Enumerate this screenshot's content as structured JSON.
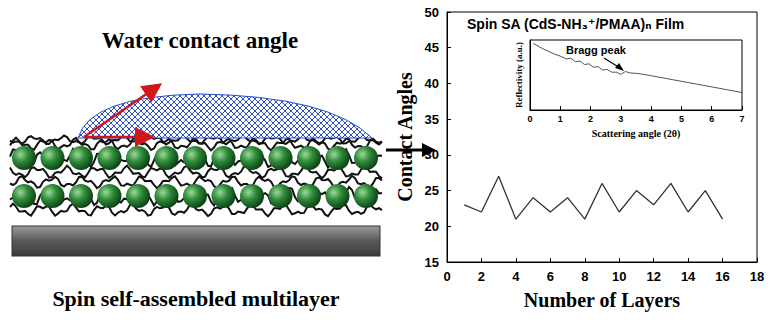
{
  "diagram": {
    "title": "Water contact angle",
    "caption": "Spin self-assembled multilayer"
  },
  "chart_data": [
    {
      "type": "line",
      "title": "Spin SA (CdS-NH₃⁺/PMAA)ₙ Film",
      "xlabel": "Number of Layers",
      "ylabel": "Contact Angles",
      "x": [
        1,
        2,
        3,
        4,
        5,
        6,
        7,
        8,
        9,
        10,
        11,
        12,
        13,
        14,
        15,
        16
      ],
      "values": [
        23,
        22,
        27,
        21,
        24,
        22,
        24,
        21,
        26,
        22,
        25,
        23,
        26,
        22,
        25,
        21
      ],
      "color": "#333333",
      "marker": "none",
      "xlim": [
        0,
        18
      ],
      "xticks": [
        0,
        2,
        4,
        6,
        8,
        10,
        12,
        14,
        16,
        18
      ],
      "ylim": [
        15,
        50
      ],
      "yticks": [
        15,
        20,
        25,
        30,
        35,
        40,
        45,
        50
      ],
      "grid": false
    },
    {
      "type": "line",
      "xlabel": "Scattering angle (2θ)",
      "ylabel": "Reflectivity (a.u.)",
      "annotation": "Bragg peak",
      "x": [
        0.1,
        0.2,
        0.4,
        0.6,
        0.8,
        1.0,
        1.2,
        1.35,
        1.5,
        1.65,
        1.8,
        1.95,
        2.1,
        2.25,
        2.4,
        2.55,
        2.7,
        2.85,
        3.0,
        3.15,
        3.3,
        3.6,
        4.0,
        4.5,
        5.0,
        5.5,
        6.0,
        6.5,
        7.0
      ],
      "values": [
        0.95,
        0.93,
        0.88,
        0.84,
        0.8,
        0.77,
        0.73,
        0.74,
        0.69,
        0.7,
        0.65,
        0.66,
        0.61,
        0.62,
        0.57,
        0.58,
        0.54,
        0.54,
        0.51,
        0.55,
        0.53,
        0.52,
        0.49,
        0.45,
        0.41,
        0.37,
        0.33,
        0.29,
        0.25
      ],
      "color": "#555555",
      "marker": "none",
      "xlim": [
        0,
        7
      ],
      "xticks": [
        0,
        1,
        2,
        3,
        4,
        5,
        6,
        7
      ],
      "ylim": [
        0,
        1
      ],
      "tick_labels": "x",
      "grid": false
    }
  ]
}
